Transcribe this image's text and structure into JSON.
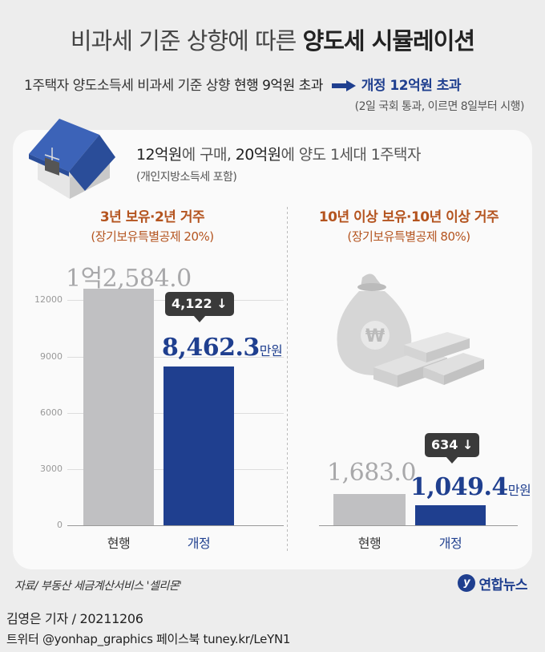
{
  "title": {
    "prefix": "비과세 기준 상향에 따른",
    "emphasis": "양도세 시뮬레이션"
  },
  "subtitle": {
    "text": "1주택자 양도소득세 비과세 기준 상향",
    "current": "현행 9억원 초과",
    "revised": "개정 12억원 초과"
  },
  "note": "(2일 국회 통과, 이르면 8일부터 시행)",
  "case": {
    "main_a": "12억원",
    "main_b": "에 구매,",
    "main_c": "20억원",
    "main_d": "에 양도 1세대 1주택자",
    "sub": "(개인지방소득세 포함)"
  },
  "chart_data": [
    {
      "type": "bar",
      "title": "3년 보유·2년 거주",
      "subtitle": "(장기보유특별공제 20%)",
      "categories": [
        "현행",
        "개정"
      ],
      "values": [
        12584.0,
        8462.3
      ],
      "value_labels": [
        "1억2,584.0",
        "8,462.3"
      ],
      "unit": "만원",
      "diff_label": "4,122",
      "yticks": [
        "0",
        "3000",
        "6000",
        "9000",
        "12000"
      ],
      "ylim": [
        0,
        13000
      ]
    },
    {
      "type": "bar",
      "title": "10년 이상 보유·10년 이상 거주",
      "subtitle": "(장기보유특별공제 80%)",
      "categories": [
        "현행",
        "개정"
      ],
      "values": [
        1683.0,
        1049.4
      ],
      "value_labels": [
        "1,683.0",
        "1,049.4"
      ],
      "unit": "만원",
      "diff_label": "634",
      "ylim": [
        0,
        13000
      ]
    }
  ],
  "colors": {
    "current_bar": "#c0c0c2",
    "revised_bar": "#1f3f8f",
    "section_heading": "#b4541f"
  },
  "source": "자료/ 부동산 세금계산서비스 '셀리몬'",
  "logo": "연합뉴스",
  "byline": "김영은 기자 / 20211206",
  "social": "트위터 @yonhap_graphics  페이스북 tuney.kr/LeYN1"
}
